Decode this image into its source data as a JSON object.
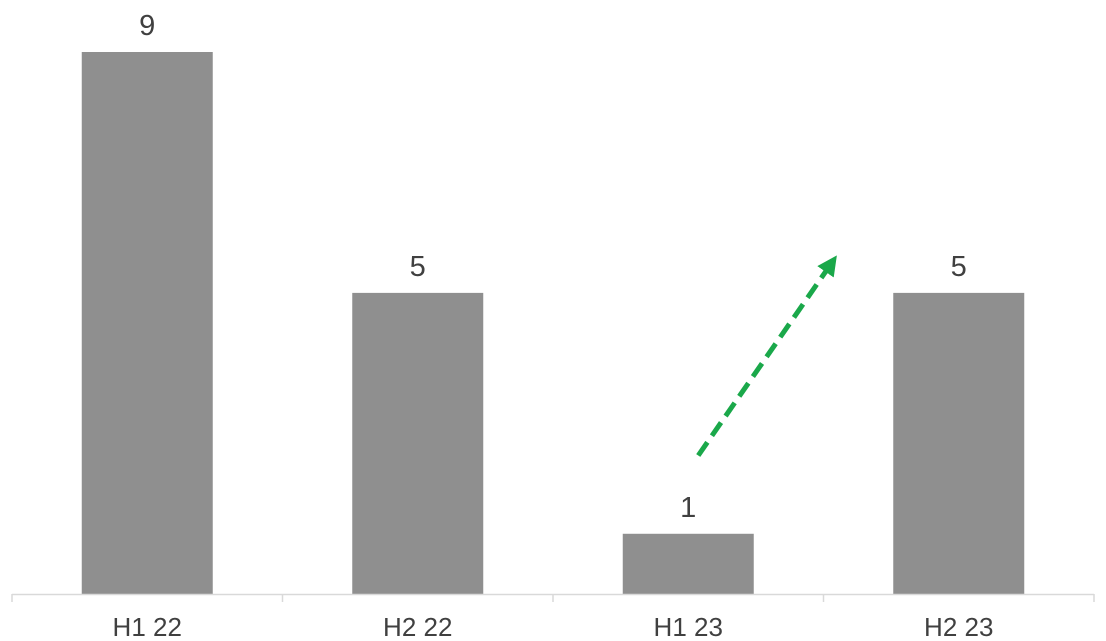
{
  "chart_data": {
    "type": "bar",
    "categories": [
      "H1 22",
      "H2 22",
      "H1 23",
      "H2 23"
    ],
    "values": [
      9,
      5,
      1,
      5
    ],
    "data_labels": [
      "9",
      "5",
      "1",
      "5"
    ],
    "title": "",
    "xlabel": "",
    "ylabel": "",
    "ylim": [
      0,
      9
    ],
    "grid": false,
    "legend": "none",
    "annotation": {
      "type": "dashed-arrow",
      "from_category": "H1 23",
      "to_category": "H2 23",
      "from_value": 2.3,
      "to_value": 5.5
    }
  },
  "colors": {
    "bar": "#8f8f8f",
    "axis": "#d9d9d9",
    "label_text": "#404040",
    "arrow": "#1aa84a"
  }
}
